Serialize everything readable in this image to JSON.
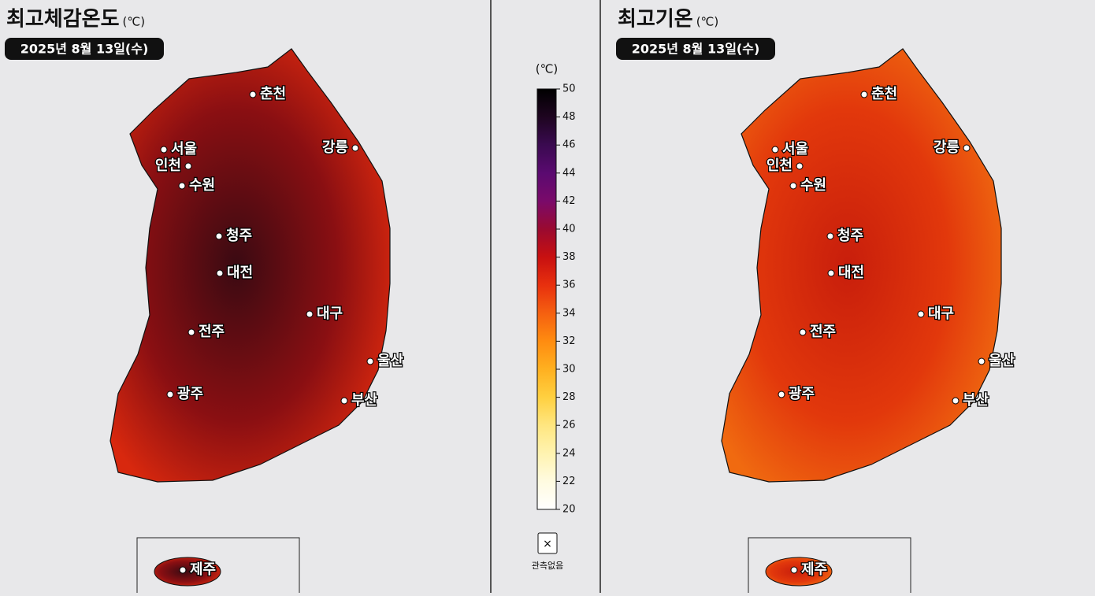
{
  "maps": [
    {
      "title": "최고체감온도",
      "unit": "(℃)",
      "date": "2025년 8월 13일(수)",
      "fill": [
        "#3a0a12",
        "#8a0f12",
        "#d8280e"
      ],
      "cities": [
        "춘천",
        "서울",
        "인천",
        "수원",
        "강릉",
        "청주",
        "대전",
        "대구",
        "전주",
        "울산",
        "광주",
        "부산",
        "제주"
      ]
    },
    {
      "title": "최고기온",
      "unit": "(℃)",
      "date": "2025년 8월 13일(수)",
      "fill": [
        "#c81e0c",
        "#e2380c",
        "#f06a10"
      ],
      "cities": [
        "춘천",
        "서울",
        "인천",
        "수원",
        "강릉",
        "청주",
        "대전",
        "대구",
        "전주",
        "울산",
        "광주",
        "부산",
        "제주"
      ]
    }
  ],
  "legend": {
    "unit": "(℃)",
    "ticks": [
      20,
      22,
      24,
      26,
      28,
      30,
      32,
      34,
      36,
      38,
      40,
      42,
      44,
      46,
      48,
      50
    ],
    "colors": [
      "#ffffff",
      "#fffbe0",
      "#fff3b0",
      "#ffe680",
      "#ffd040",
      "#ffb020",
      "#ff8c10",
      "#f56010",
      "#e8300e",
      "#c81010",
      "#9a0a30",
      "#7a0a6a",
      "#5a0a70",
      "#3a0a50",
      "#1e0520",
      "#000000"
    ],
    "no_data": "관측없음"
  }
}
